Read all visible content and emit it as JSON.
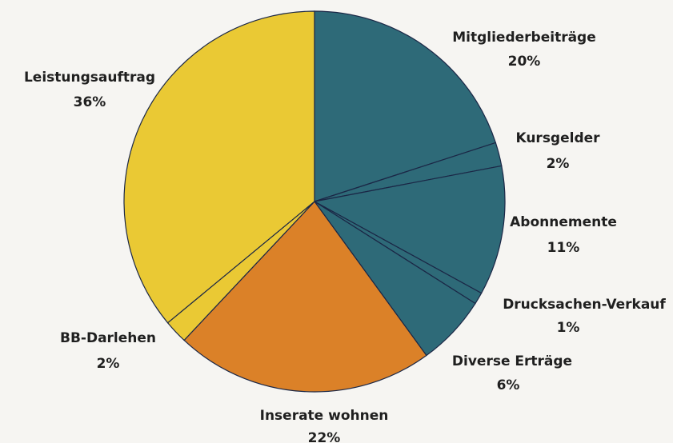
{
  "chart_data": {
    "type": "pie",
    "categories": [
      "Mitgliederbeiträge",
      "Kursgelder",
      "Abonnemente",
      "Drucksachen-Verkauf",
      "Diverse Erträge",
      "Inserate wohnen",
      "BB-Darlehen",
      "Leistungsauftrag"
    ],
    "values": [
      20,
      2,
      11,
      1,
      6,
      22,
      2,
      36
    ],
    "value_labels": [
      "20%",
      "2%",
      "11%",
      "1%",
      "6%",
      "22%",
      "2%",
      "36%"
    ],
    "colors": [
      "#2e6a78",
      "#2e6a78",
      "#2e6a78",
      "#2e6a78",
      "#2e6a78",
      "#db8128",
      "#eac934",
      "#eac934"
    ]
  }
}
